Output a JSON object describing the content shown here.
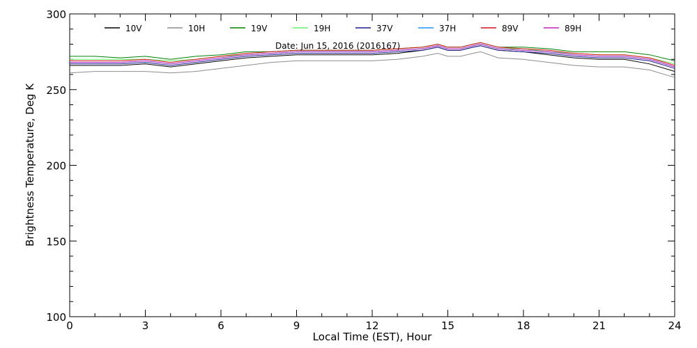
{
  "chart_data": {
    "type": "line",
    "title": "",
    "annotation": "Date: Jun 15, 2016 (2016167)",
    "xlabel": "Local Time (EST), Hour",
    "ylabel": "Brightness Temperature, Deg K",
    "xlim": [
      0,
      24
    ],
    "ylim": [
      100,
      300
    ],
    "x_ticks": [
      0,
      3,
      6,
      9,
      12,
      15,
      18,
      21,
      24
    ],
    "y_ticks": [
      100,
      150,
      200,
      250,
      300
    ],
    "grid": false,
    "legend_position": "top",
    "x": [
      0,
      1,
      2,
      3,
      4,
      5,
      6,
      7,
      8,
      9,
      10,
      11,
      12,
      13,
      14,
      14.6,
      15,
      15.5,
      16,
      16.3,
      17,
      18,
      19,
      20,
      21,
      22,
      23,
      24
    ],
    "series": [
      {
        "name": "10V",
        "color": "#000000",
        "values": [
          266,
          266,
          266,
          267,
          265,
          267,
          269,
          271,
          272,
          273,
          273,
          273,
          273,
          274,
          276,
          278,
          276,
          276,
          278,
          279,
          276,
          275,
          273,
          271,
          270,
          270,
          267,
          262
        ]
      },
      {
        "name": "10H",
        "color": "#8c8c8c",
        "values": [
          261,
          262,
          262,
          262,
          261,
          262,
          264,
          266,
          268,
          269,
          269,
          269,
          269,
          270,
          272,
          274,
          272,
          272,
          274,
          275,
          271,
          270,
          268,
          266,
          265,
          265,
          263,
          258
        ]
      },
      {
        "name": "19V",
        "color": "#008000",
        "values": [
          272,
          272,
          271,
          272,
          270,
          272,
          273,
          275,
          275,
          276,
          276,
          276,
          276,
          277,
          278,
          280,
          278,
          278,
          280,
          281,
          278,
          278,
          277,
          275,
          275,
          275,
          273,
          269
        ]
      },
      {
        "name": "19H",
        "color": "#66ee66",
        "values": [
          270,
          270,
          270,
          270,
          269,
          270,
          272,
          273,
          274,
          275,
          275,
          275,
          275,
          276,
          277,
          279,
          277,
          277,
          279,
          280,
          277,
          277,
          275,
          274,
          273,
          273,
          271,
          267
        ]
      },
      {
        "name": "37V",
        "color": "#1a1a8c",
        "values": [
          267,
          267,
          267,
          268,
          266,
          268,
          270,
          272,
          273,
          274,
          274,
          274,
          274,
          275,
          276,
          278,
          276,
          276,
          278,
          279,
          276,
          275,
          274,
          272,
          271,
          271,
          269,
          264
        ]
      },
      {
        "name": "37H",
        "color": "#1e90ff",
        "values": [
          268,
          268,
          268,
          269,
          267,
          269,
          271,
          273,
          274,
          275,
          275,
          275,
          275,
          276,
          277,
          279,
          277,
          277,
          279,
          280,
          277,
          276,
          275,
          273,
          272,
          272,
          270,
          265
        ]
      },
      {
        "name": "89V",
        "color": "#d01010",
        "values": [
          269,
          269,
          269,
          270,
          268,
          270,
          272,
          274,
          275,
          276,
          276,
          276,
          276,
          277,
          278,
          280,
          278,
          278,
          280,
          281,
          278,
          277,
          276,
          274,
          273,
          273,
          271,
          266
        ]
      },
      {
        "name": "89H",
        "color": "#c020c0",
        "values": [
          268,
          268,
          268,
          269,
          267,
          269,
          271,
          273,
          274,
          275,
          275,
          275,
          275,
          276,
          277,
          279,
          277,
          277,
          279,
          280,
          277,
          276,
          275,
          273,
          272,
          272,
          270,
          265
        ]
      }
    ]
  }
}
